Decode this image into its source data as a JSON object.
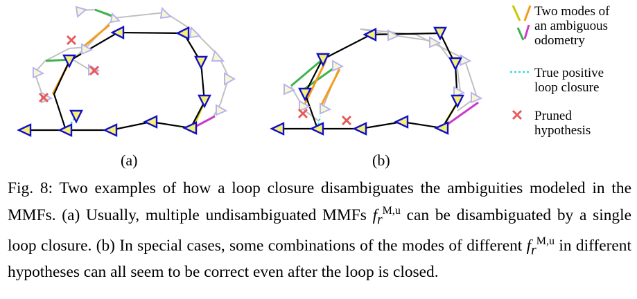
{
  "subfigures": [
    {
      "label": "(a)"
    },
    {
      "label": "(b)"
    }
  ],
  "legend": {
    "ambiguous": [
      "Two modes of",
      "an ambiguous",
      "odometry"
    ],
    "loop_closure": [
      "True positive",
      "loop closure"
    ],
    "pruned": [
      "Pruned",
      "hypothesis"
    ]
  },
  "caption": {
    "prefix": "Fig. 8: Two examples of how a loop closure disambiguates the ambiguities modeled in the MMFs. (a) Usually, multiple undisambiguated MMFs ",
    "symbol1": "f",
    "sub1": "r",
    "sup1": "M,u",
    "middle": " can be disambiguated by a single loop closure. (b) In special cases, some combinations of the modes of different ",
    "symbol2": "f",
    "sub2": "r",
    "sup2": "M,u",
    "suffix": " in different hypotheses can all seem to be correct even after the loop is closed."
  },
  "colors": {
    "pose_fill": "#f7f075",
    "pose_border": "#1010c8",
    "ghost_fill": "#f9f7cf",
    "ghost_border": "#b7b4f0",
    "ghost_edge": "#c0c0c0",
    "odometry": "#000000",
    "mode_green": "#3cb44b",
    "mode_orange": "#f59b1b",
    "mode_yellow": "#c8c800",
    "mode_magenta": "#c83cc8",
    "loop_closure": "#33dddd",
    "pruned": "#e85a5a"
  }
}
